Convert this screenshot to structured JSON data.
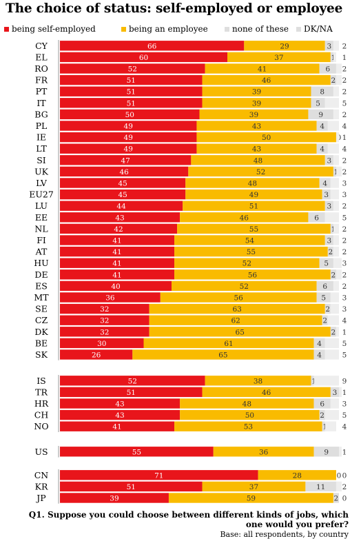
{
  "title": "The choice of status: self-employed or employee",
  "legend": [
    {
      "label": "being self-employed",
      "color": "#e8151b"
    },
    {
      "label": "being an employee",
      "color": "#f9bb00"
    },
    {
      "label": "none of these",
      "color": "#dedede"
    },
    {
      "label": "DK/NA",
      "color": "#dedede"
    }
  ],
  "question": "Q1. Suppose you could choose between different kinds of jobs, which one would you prefer?",
  "base": "Base: all respondents, by country",
  "chart_data": {
    "type": "bar",
    "orientation": "horizontal",
    "stacked": true,
    "xlim": [
      0,
      100
    ],
    "series_names": [
      "being self-employed",
      "being an employee",
      "none of these",
      "DK/NA"
    ],
    "colors": [
      "#e8151b",
      "#f9bb00",
      "#dedede",
      "#eeeeee"
    ],
    "groups": [
      {
        "rows": [
          {
            "country": "CY",
            "values": [
              66,
              29,
              3,
              2
            ]
          },
          {
            "country": "EL",
            "values": [
              60,
              37,
              1,
              1
            ]
          },
          {
            "country": "RO",
            "values": [
              52,
              41,
              6,
              2
            ]
          },
          {
            "country": "FR",
            "values": [
              51,
              46,
              2,
              2
            ]
          },
          {
            "country": "PT",
            "values": [
              51,
              39,
              8,
              2
            ]
          },
          {
            "country": "IT",
            "values": [
              51,
              39,
              5,
              5
            ]
          },
          {
            "country": "BG",
            "values": [
              50,
              39,
              9,
              2
            ]
          },
          {
            "country": "PL",
            "values": [
              49,
              43,
              4,
              4
            ]
          },
          {
            "country": "IE",
            "values": [
              49,
              50,
              0,
              1
            ]
          },
          {
            "country": "LT",
            "values": [
              49,
              43,
              4,
              4
            ]
          },
          {
            "country": "SI",
            "values": [
              47,
              48,
              3,
              2
            ]
          },
          {
            "country": "UK",
            "values": [
              46,
              52,
              1,
              2
            ]
          },
          {
            "country": "LV",
            "values": [
              45,
              48,
              4,
              3
            ]
          },
          {
            "country": "EU27",
            "values": [
              45,
              49,
              3,
              3
            ]
          },
          {
            "country": "LU",
            "values": [
              44,
              51,
              3,
              2
            ]
          },
          {
            "country": "EE",
            "values": [
              43,
              46,
              6,
              5
            ]
          },
          {
            "country": "NL",
            "values": [
              42,
              55,
              1,
              2
            ]
          },
          {
            "country": "FI",
            "values": [
              41,
              54,
              3,
              2
            ]
          },
          {
            "country": "AT",
            "values": [
              41,
              55,
              2,
              2
            ]
          },
          {
            "country": "HU",
            "values": [
              41,
              52,
              5,
              3
            ]
          },
          {
            "country": "DE",
            "values": [
              41,
              56,
              2,
              2
            ]
          },
          {
            "country": "ES",
            "values": [
              40,
              52,
              6,
              2
            ]
          },
          {
            "country": "MT",
            "values": [
              36,
              56,
              5,
              3
            ]
          },
          {
            "country": "SE",
            "values": [
              32,
              63,
              2,
              3
            ]
          },
          {
            "country": "CZ",
            "values": [
              32,
              62,
              2,
              4
            ]
          },
          {
            "country": "DK",
            "values": [
              32,
              65,
              2,
              1
            ]
          },
          {
            "country": "BE",
            "values": [
              30,
              61,
              4,
              5
            ]
          },
          {
            "country": "SK",
            "values": [
              26,
              65,
              4,
              5
            ]
          }
        ]
      },
      {
        "rows": [
          {
            "country": "IS",
            "values": [
              52,
              38,
              1,
              9
            ]
          },
          {
            "country": "TR",
            "values": [
              51,
              46,
              3,
              1
            ]
          },
          {
            "country": "HR",
            "values": [
              43,
              48,
              6,
              3
            ]
          },
          {
            "country": "CH",
            "values": [
              43,
              50,
              2,
              5
            ]
          },
          {
            "country": "NO",
            "values": [
              41,
              53,
              1,
              4
            ]
          }
        ]
      },
      {
        "rows": [
          {
            "country": "US",
            "values": [
              55,
              36,
              9,
              1
            ]
          }
        ]
      },
      {
        "rows": [
          {
            "country": "CN",
            "values": [
              71,
              28,
              0,
              0
            ]
          },
          {
            "country": "KR",
            "values": [
              51,
              37,
              11,
              2
            ]
          },
          {
            "country": "JP",
            "values": [
              39,
              59,
              2,
              0
            ]
          }
        ]
      }
    ]
  }
}
